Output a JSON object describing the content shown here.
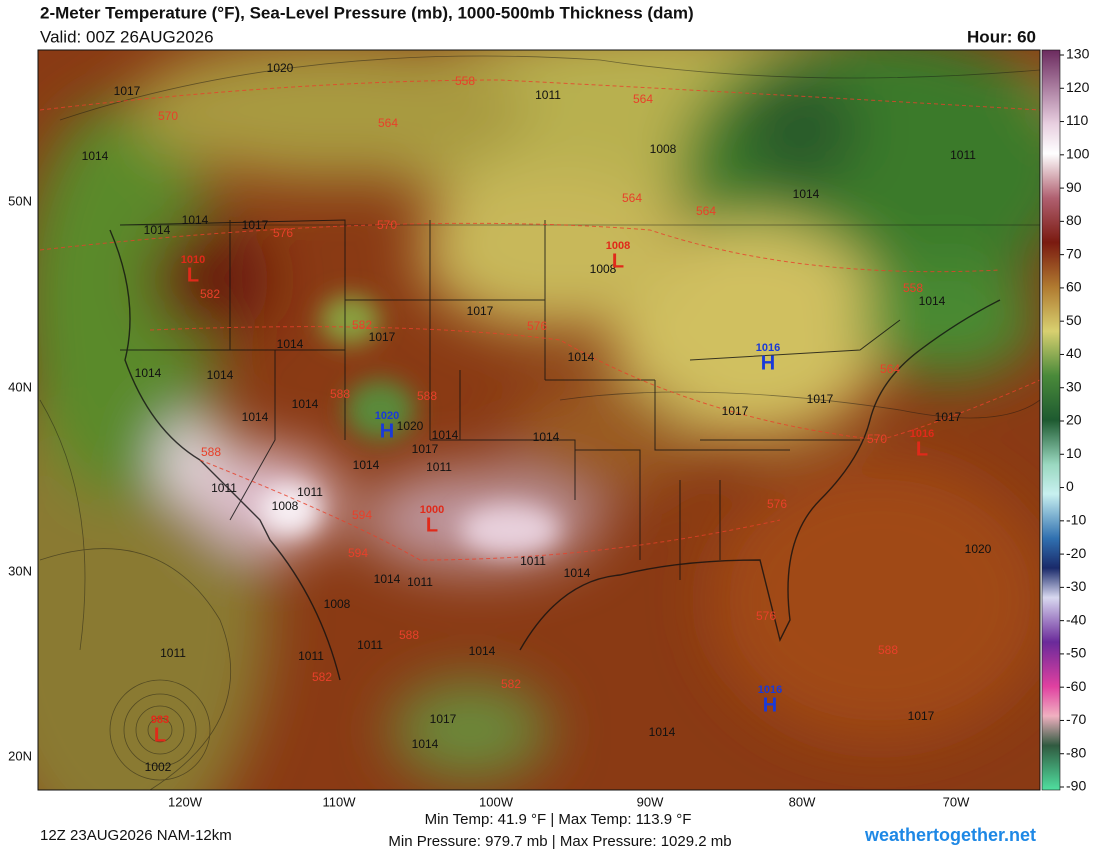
{
  "header": {
    "title": "2-Meter Temperature (°F), Sea-Level Pressure (mb), 1000-500mb Thickness (dam)",
    "valid": "Valid: 00Z 26AUG2026",
    "hour": "Hour: 60"
  },
  "colorbar": {
    "ticks": [
      130,
      120,
      110,
      100,
      90,
      80,
      70,
      60,
      50,
      40,
      30,
      20,
      10,
      0,
      -10,
      -20,
      -30,
      -40,
      -50,
      -60,
      -70,
      -80,
      -90
    ]
  },
  "axes": {
    "lat_labels": [
      "50N",
      "40N",
      "30N",
      "20N"
    ],
    "lon_labels": [
      "120W",
      "110W",
      "100W",
      "90W",
      "80W",
      "70W"
    ]
  },
  "map_labels": {
    "isobars": [
      "1020",
      "1017",
      "1011",
      "1014",
      "1008",
      "1011",
      "1014",
      "1014",
      "1014",
      "1017",
      "1014",
      "1017",
      "1017",
      "1014",
      "1014",
      "1014",
      "1014",
      "1014",
      "1014",
      "1017",
      "1017",
      "1017",
      "1014",
      "1014",
      "1020",
      "1017",
      "1014",
      "1011",
      "1011",
      "1011",
      "1008",
      "1011",
      "1014",
      "1014",
      "1011",
      "1020",
      "1008",
      "1011",
      "1014",
      "1011",
      "1011",
      "1017",
      "1014",
      "1014",
      "1017",
      "1002",
      "1008"
    ],
    "thickness": [
      "558",
      "564",
      "570",
      "564",
      "564",
      "564",
      "570",
      "576",
      "582",
      "582",
      "576",
      "558",
      "564",
      "588",
      "588",
      "570",
      "588",
      "576",
      "594",
      "594",
      "588",
      "576",
      "582",
      "582",
      "588"
    ],
    "centers": [
      {
        "letter": "L",
        "value": "1010"
      },
      {
        "letter": "L",
        "value": "1008"
      },
      {
        "letter": "H",
        "value": "1020"
      },
      {
        "letter": "H",
        "value": "1016"
      },
      {
        "letter": "L",
        "value": "1016"
      },
      {
        "letter": "L",
        "value": "1000"
      },
      {
        "letter": "H",
        "value": "1016"
      },
      {
        "letter": "L",
        "value": "983"
      }
    ]
  },
  "footer": {
    "run": "12Z 23AUG2026 NAM-12km",
    "temps": "Min Temp:  41.9 °F | Max Temp: 113.9 °F",
    "pressures": "Min Pressure: 979.7 mb | Max Pressure: 1029.2 mb",
    "site": "weathertogether.net"
  }
}
